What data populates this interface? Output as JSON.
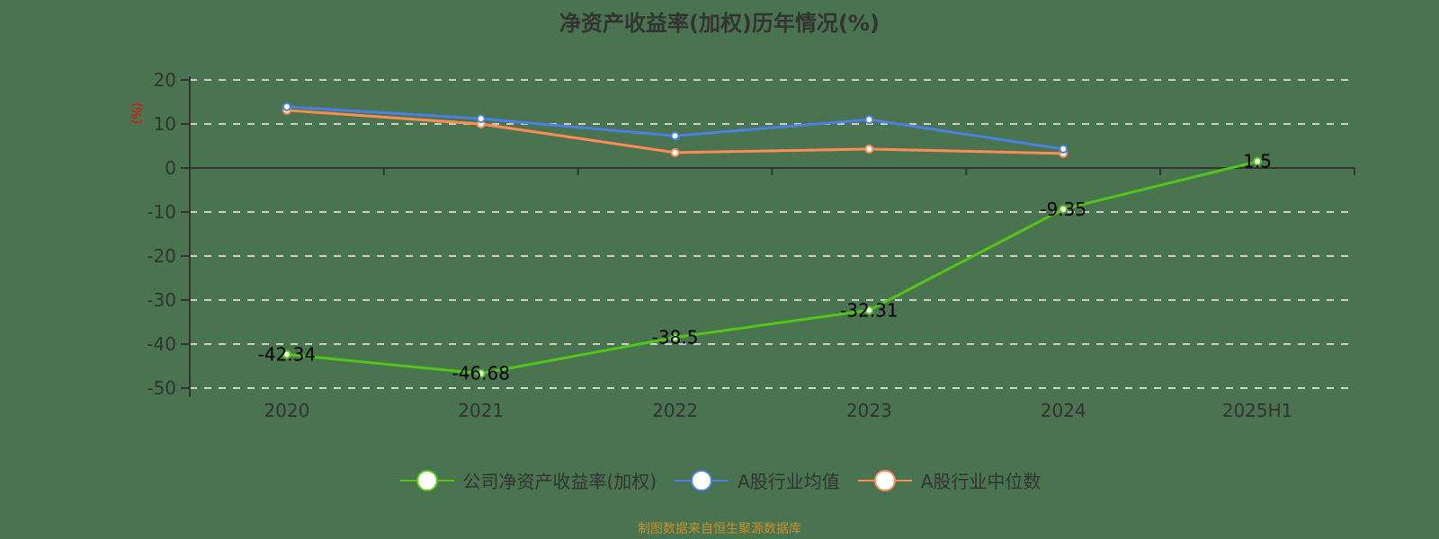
{
  "title": "净资产收益率(加权)历年情况(%)",
  "source_note": "制图数据来自恒生聚源数据库",
  "y_unit_label": "(%)",
  "colors": {
    "background": "#4a7350",
    "company": "#52c41a",
    "industry_avg": "#4a80e0",
    "industry_median": "#ff8c55",
    "grid": "#d0d0d0",
    "axis": "#333333"
  },
  "legend": [
    {
      "label": "公司净资产收益率(加权)",
      "color": "#52c41a"
    },
    {
      "label": "A股行业均值",
      "color": "#4a80e0"
    },
    {
      "label": "A股行业中位数",
      "color": "#ff8c55"
    }
  ],
  "chart_data": {
    "type": "line",
    "title": "净资产收益率(加权)历年情况(%)",
    "xlabel": "",
    "ylabel": "(%)",
    "categories": [
      "2020",
      "2021",
      "2022",
      "2023",
      "2024",
      "2025H1"
    ],
    "ylim": [
      -50,
      20
    ],
    "yticks": [
      20,
      10,
      0,
      -10,
      -20,
      -30,
      -40,
      -50
    ],
    "grid": true,
    "legend_position": "bottom",
    "series": [
      {
        "name": "公司净资产收益率(加权)",
        "values": [
          -42.34,
          -46.68,
          -38.5,
          -32.31,
          -9.35,
          1.5
        ],
        "labels_shown": true
      },
      {
        "name": "A股行业均值",
        "values": [
          13.9,
          11.2,
          7.3,
          11.0,
          4.3,
          null
        ],
        "labels_shown": false
      },
      {
        "name": "A股行业中位数",
        "values": [
          13.1,
          10.0,
          3.5,
          4.3,
          3.3,
          null
        ],
        "labels_shown": false
      }
    ],
    "data_labels": [
      "-42.34",
      "-46.68",
      "-38.5",
      "-32.31",
      "-9.35",
      "1.5"
    ]
  }
}
